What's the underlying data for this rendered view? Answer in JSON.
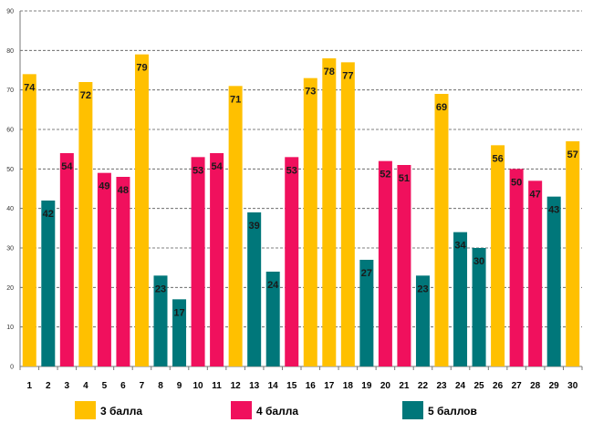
{
  "chart_data": {
    "type": "bar",
    "title": "",
    "xlabel": "",
    "ylabel": "",
    "ylim": [
      0,
      90
    ],
    "yticks": [
      0,
      10,
      20,
      30,
      40,
      50,
      60,
      70,
      80,
      90
    ],
    "grid": "dashed horizontal",
    "legend_position": "bottom",
    "categories": [
      "1",
      "2",
      "3",
      "4",
      "5",
      "6",
      "7",
      "8",
      "9",
      "10",
      "11",
      "12",
      "13",
      "14",
      "15",
      "16",
      "17",
      "18",
      "19",
      "20",
      "21",
      "22",
      "23",
      "24",
      "25",
      "26",
      "27",
      "28",
      "29",
      "30"
    ],
    "values": [
      74,
      42,
      54,
      72,
      49,
      48,
      79,
      23,
      17,
      53,
      54,
      71,
      39,
      24,
      53,
      73,
      78,
      77,
      27,
      52,
      51,
      23,
      69,
      34,
      30,
      56,
      50,
      47,
      43,
      57
    ],
    "groups": [
      "3 балла",
      "5 баллов",
      "4 балла",
      "3 балла",
      "4 балла",
      "4 балла",
      "3 балла",
      "5 баллов",
      "5 баллов",
      "4 балла",
      "4 балла",
      "3 балла",
      "5 баллов",
      "5 баллов",
      "4 балла",
      "3 балла",
      "3 балла",
      "3 балла",
      "5 баллов",
      "4 балла",
      "4 балла",
      "5 баллов",
      "3 балла",
      "5 баллов",
      "5 баллов",
      "3 балла",
      "4 балла",
      "4 балла",
      "5 баллов",
      "3 балла"
    ],
    "series": [
      {
        "name": "3 балла",
        "color": "#ffc000"
      },
      {
        "name": "4 балла",
        "color": "#f0105d"
      },
      {
        "name": "5 баллов",
        "color": "#00777a"
      }
    ]
  }
}
